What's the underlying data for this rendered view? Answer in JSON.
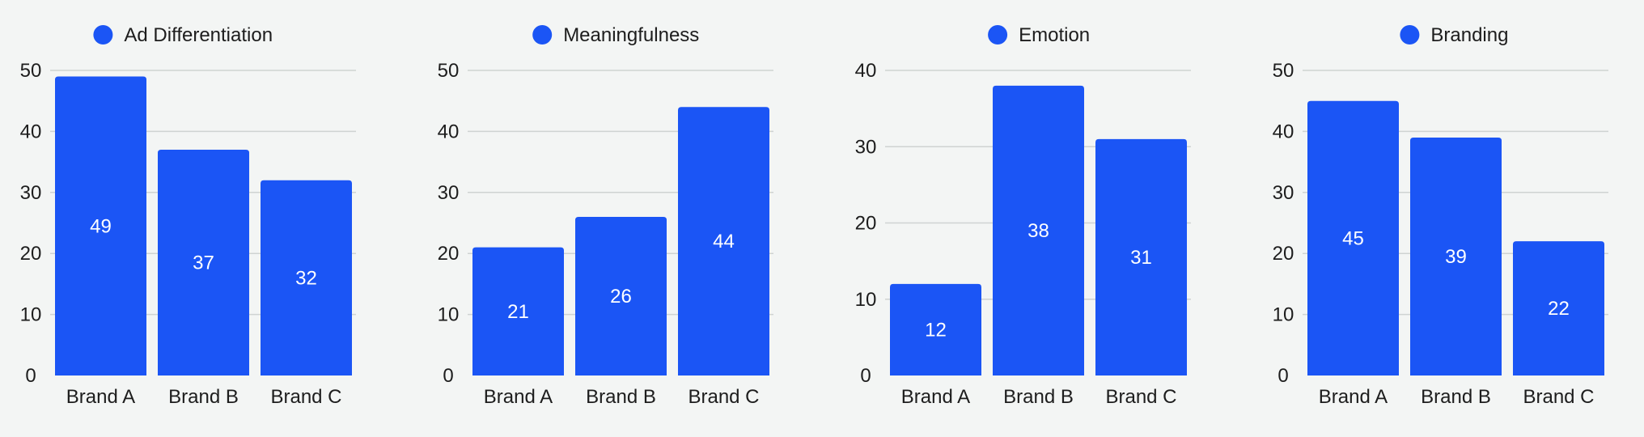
{
  "colors": {
    "bar": "#1b55f5",
    "background": "#f3f5f4",
    "grid": "#cfd3d2"
  },
  "chart_data": [
    {
      "type": "bar",
      "title": "",
      "legend": [
        "Ad Differentiation"
      ],
      "legend_position": "top-center",
      "categories": [
        "Brand A",
        "Brand B",
        "Brand C"
      ],
      "series": [
        {
          "name": "Ad Differentiation",
          "values": [
            49,
            37,
            32
          ]
        }
      ],
      "ylim": [
        0,
        50
      ],
      "yticks": [
        0,
        10,
        20,
        30,
        40,
        50
      ],
      "grid": true
    },
    {
      "type": "bar",
      "title": "",
      "legend": [
        "Meaningfulness"
      ],
      "legend_position": "top-center",
      "categories": [
        "Brand A",
        "Brand B",
        "Brand C"
      ],
      "series": [
        {
          "name": "Meaningfulness",
          "values": [
            21,
            26,
            44
          ]
        }
      ],
      "ylim": [
        0,
        50
      ],
      "yticks": [
        0,
        10,
        20,
        30,
        40,
        50
      ],
      "grid": true
    },
    {
      "type": "bar",
      "title": "",
      "legend": [
        "Emotion"
      ],
      "legend_position": "top-center",
      "categories": [
        "Brand A",
        "Brand B",
        "Brand C"
      ],
      "series": [
        {
          "name": "Emotion",
          "values": [
            12,
            38,
            31
          ]
        }
      ],
      "ylim": [
        0,
        40
      ],
      "yticks": [
        0,
        10,
        20,
        30,
        40
      ],
      "grid": true
    },
    {
      "type": "bar",
      "title": "",
      "legend": [
        "Branding"
      ],
      "legend_position": "top-center",
      "categories": [
        "Brand A",
        "Brand B",
        "Brand C"
      ],
      "series": [
        {
          "name": "Branding",
          "values": [
            45,
            39,
            22
          ]
        }
      ],
      "ylim": [
        0,
        50
      ],
      "yticks": [
        0,
        10,
        20,
        30,
        40,
        50
      ],
      "grid": true
    }
  ]
}
